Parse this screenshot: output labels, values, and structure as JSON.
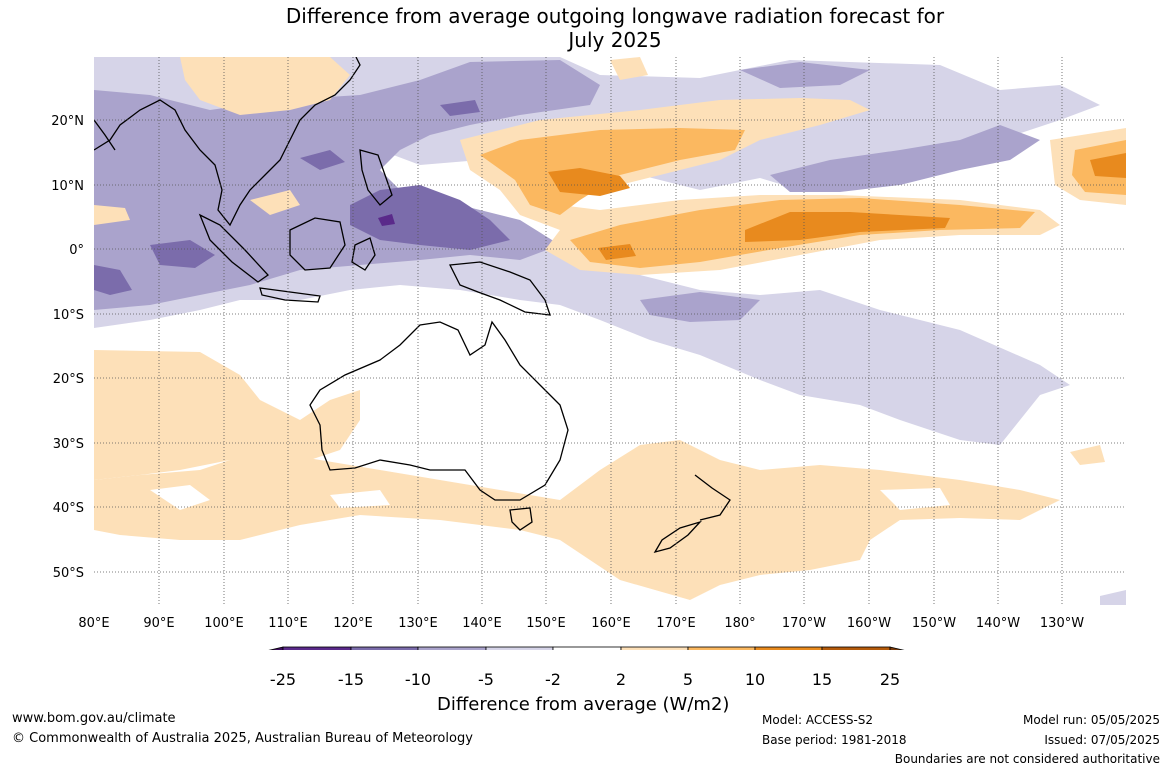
{
  "title": {
    "line1": "Difference from average outgoing longwave radiation forecast for",
    "line2": "July 2025"
  },
  "map": {
    "lat_labels": [
      "20°N",
      "10°N",
      "0°",
      "10°S",
      "20°S",
      "30°S",
      "40°S",
      "50°S"
    ],
    "lon_labels": [
      "80°E",
      "90°E",
      "100°E",
      "110°E",
      "120°E",
      "130°E",
      "140°E",
      "150°E",
      "160°E",
      "170°E",
      "180°",
      "170°W",
      "160°W",
      "150°W",
      "140°W",
      "130°W"
    ]
  },
  "legend": {
    "categories": [
      {
        "range": "< -25",
        "color": "#3d0f5c"
      },
      {
        "range": "-25 to -15",
        "color": "#5a2a8a"
      },
      {
        "range": "-15 to -10",
        "color": "#7b6cab"
      },
      {
        "range": "-10 to -5",
        "color": "#aaa3cc"
      },
      {
        "range": "-5 to -2",
        "color": "#d6d4e8"
      },
      {
        "range": "-2 to 2",
        "color": "#ffffff"
      },
      {
        "range": "2 to 5",
        "color": "#fde0b8"
      },
      {
        "range": "5 to 10",
        "color": "#fbb860"
      },
      {
        "range": "10 to 15",
        "color": "#e88a1e"
      },
      {
        "range": "15 to 25",
        "color": "#b45a0a"
      },
      {
        "range": "> 25",
        "color": "#7a3a0a"
      }
    ],
    "tick_labels": [
      "-25",
      "-15",
      "-10",
      "-5",
      "-2",
      "2",
      "5",
      "10",
      "15",
      "25"
    ],
    "title": "Difference from average (W/m2)"
  },
  "footer": {
    "website": "www.bom.gov.au/climate",
    "copyright": "© Commonwealth of Australia 2025, Australian Bureau of Meteorology",
    "model": "Model: ACCESS-S2",
    "base_period": "Base period: 1981-2018",
    "model_run": "Model run: 05/05/2025",
    "issued": "Issued: 07/05/2025",
    "disclaimer": "Boundaries are not considered authoritative"
  }
}
